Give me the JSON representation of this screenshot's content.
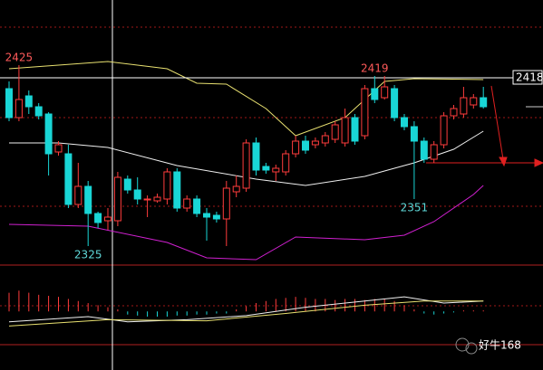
{
  "chart_data": {
    "type": "candlestick",
    "ylim": [
      2315,
      2461
    ],
    "up_color": "#ff3c3c",
    "down_color": "#19d6d6",
    "open": [
      2412,
      2396,
      2408,
      2402,
      2398,
      2377,
      2376,
      2348,
      2358,
      2343,
      2339,
      2339,
      2362,
      2356,
      2351,
      2350,
      2351,
      2366,
      2346,
      2351,
      2343,
      2342,
      2340,
      2355,
      2357,
      2382,
      2369,
      2366,
      2366,
      2376,
      2383,
      2381,
      2382,
      2384,
      2382,
      2396,
      2386,
      2412,
      2407,
      2412,
      2396,
      2391,
      2383,
      2373,
      2381,
      2397,
      2398,
      2403,
      2407
    ],
    "high": [
      2416,
      2425,
      2411,
      2404,
      2399,
      2383,
      2381,
      2371,
      2361,
      2344,
      2346,
      2366,
      2364,
      2363,
      2353,
      2354,
      2368,
      2368,
      2353,
      2353,
      2346,
      2344,
      2361,
      2364,
      2384,
      2385,
      2371,
      2370,
      2378,
      2386,
      2386,
      2385,
      2388,
      2394,
      2401,
      2398,
      2414,
      2419,
      2419,
      2414,
      2398,
      2394,
      2385,
      2383,
      2399,
      2403,
      2413,
      2409,
      2413
    ],
    "low": [
      2394,
      2394,
      2398,
      2395,
      2364,
      2375,
      2346,
      2346,
      2325,
      2335,
      2334,
      2336,
      2354,
      2348,
      2341,
      2349,
      2348,
      2344,
      2344,
      2341,
      2328,
      2338,
      2325,
      2352,
      2355,
      2364,
      2365,
      2361,
      2364,
      2374,
      2376,
      2379,
      2380,
      2382,
      2380,
      2381,
      2384,
      2404,
      2406,
      2394,
      2389,
      2351,
      2371,
      2371,
      2379,
      2395,
      2396,
      2401,
      2401
    ],
    "close": [
      2396,
      2406,
      2402,
      2397,
      2376,
      2381,
      2348,
      2358,
      2343,
      2338,
      2341,
      2363,
      2356,
      2351,
      2351,
      2352,
      2366,
      2346,
      2351,
      2343,
      2341,
      2340,
      2357,
      2358,
      2382,
      2367,
      2367,
      2368,
      2376,
      2383,
      2378,
      2383,
      2386,
      2392,
      2396,
      2383,
      2412,
      2406,
      2413,
      2396,
      2391,
      2383,
      2373,
      2381,
      2397,
      2401,
      2407,
      2407,
      2402
    ],
    "series": [
      {
        "color": "#e8e070",
        "x": [
          0,
          10,
          16,
          19,
          22,
          26,
          29,
          34,
          38,
          41,
          48
        ],
        "values": [
          2423,
          2427,
          2423,
          2415,
          2414.5,
          2401,
          2386,
          2396,
          2416,
          2417.5,
          2417
        ]
      },
      {
        "color": "#f0f0f0",
        "x": [
          0,
          5,
          10,
          17,
          25,
          30,
          36,
          41,
          45,
          48
        ],
        "values": [
          2382,
          2382,
          2379.5,
          2369.5,
          2362,
          2358.5,
          2363.5,
          2371,
          2378.5,
          2388.5
        ]
      },
      {
        "color": "#d020d0",
        "x": [
          0,
          8,
          16,
          20,
          25,
          29,
          36,
          40,
          43,
          47,
          48
        ],
        "values": [
          2337,
          2336,
          2327,
          2318.5,
          2317.5,
          2330,
          2328.5,
          2331,
          2338.5,
          2353.5,
          2358.5
        ]
      }
    ],
    "hline": 2418,
    "annotations": [
      {
        "value": 2425,
        "color": "#ff5a5a"
      },
      {
        "value": 2419,
        "color": "#ff5a5a"
      },
      {
        "value": 2351,
        "color": "#5fd8d8"
      },
      {
        "value": 2325,
        "color": "#5fd8d8"
      }
    ],
    "macd": {
      "ylim": [
        -32,
        42
      ],
      "histogram": [
        18,
        20,
        18,
        16,
        15,
        14,
        12,
        10,
        8,
        6,
        4,
        2,
        -3,
        -4,
        -5,
        -5,
        -5,
        -4,
        -4,
        -3,
        -3,
        -2,
        -2,
        2,
        5,
        8,
        10,
        12,
        13,
        14,
        13,
        12,
        12,
        11,
        12,
        12,
        11,
        12,
        12,
        10,
        6,
        2,
        -2,
        -3,
        -2,
        -1,
        1,
        1,
        1
      ],
      "lines": [
        {
          "color": "#f0f0f0",
          "x": [
            0,
            8,
            12,
            18,
            24,
            30,
            36,
            40,
            44,
            48
          ],
          "values": [
            -10,
            -5,
            -10,
            -8,
            -4,
            4,
            10,
            14,
            8,
            10
          ]
        },
        {
          "color": "#e8e070",
          "x": [
            0,
            10,
            20,
            28,
            36,
            42,
            48
          ],
          "values": [
            -14,
            -8,
            -9,
            -2,
            6,
            10,
            10
          ]
        }
      ]
    },
    "watermark": "好牛168"
  }
}
